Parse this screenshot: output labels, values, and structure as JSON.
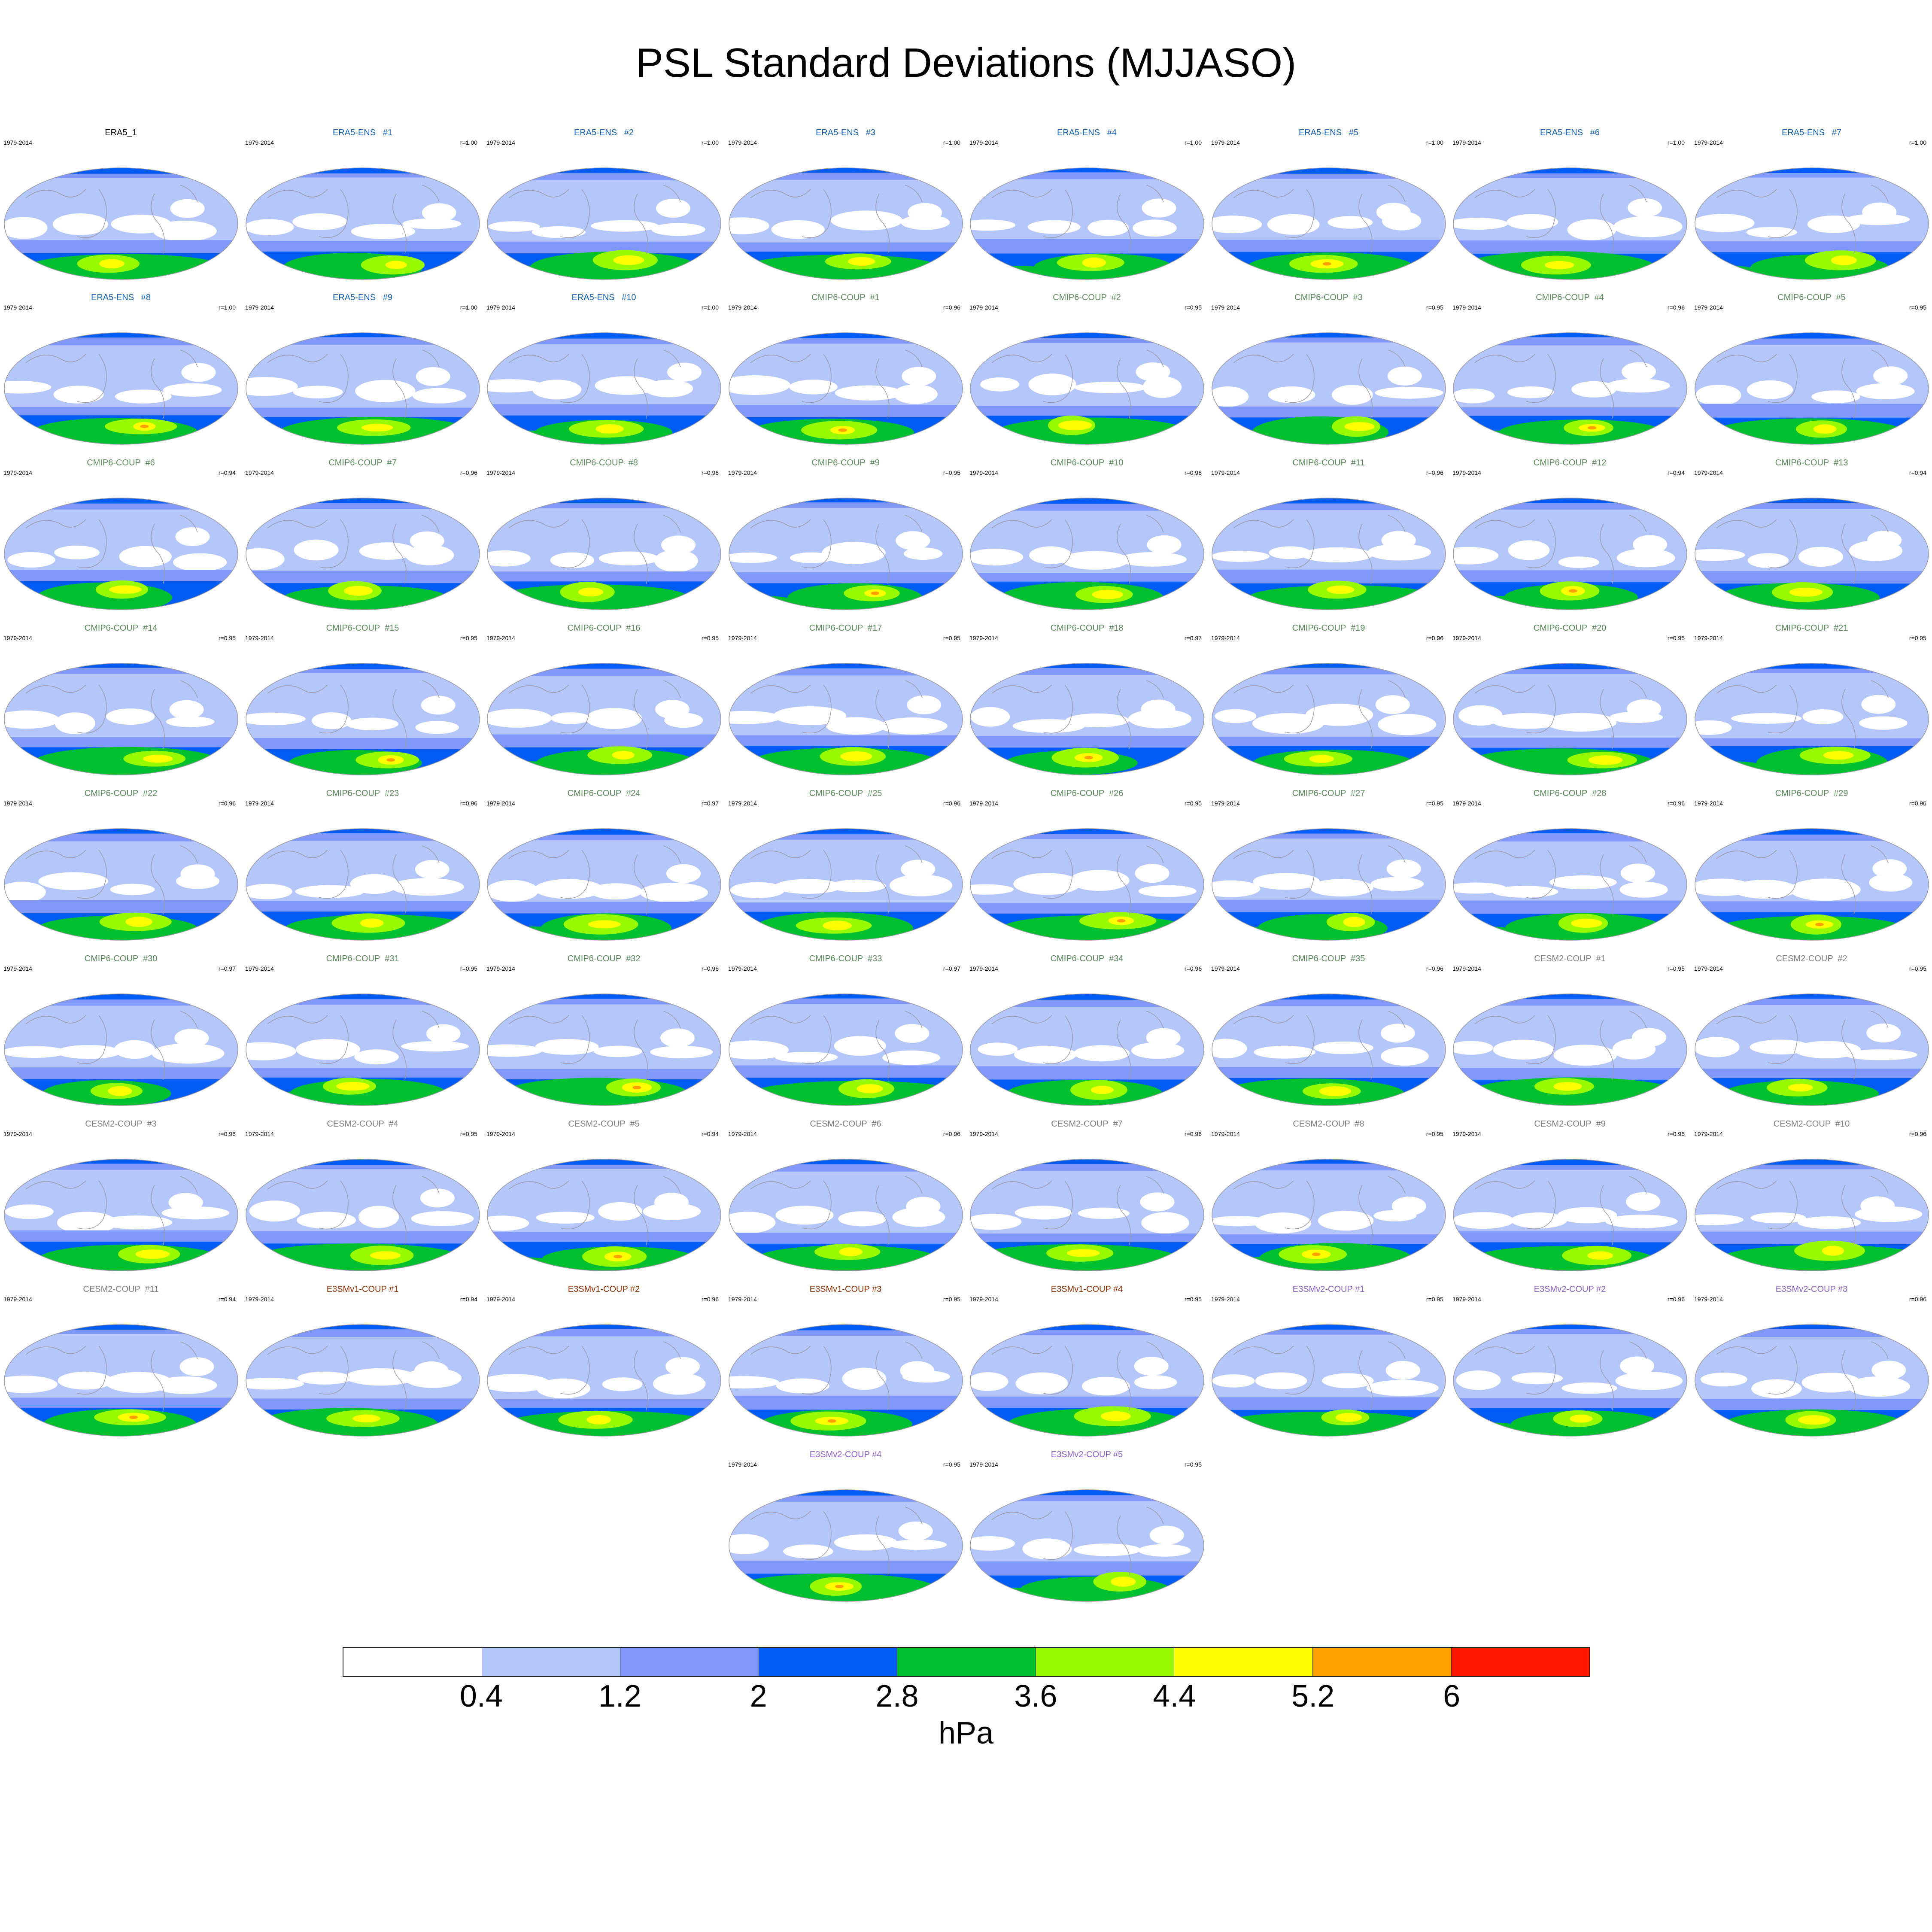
{
  "title": "PSL Standard Deviations (MJJASO)",
  "period": "1979-2014",
  "units": "hPa",
  "colorbar": {
    "colors": [
      "#ffffff",
      "#b4c6fa",
      "#8097fc",
      "#005cf4",
      "#00c030",
      "#98fa00",
      "#ffff00",
      "#ffa000",
      "#fe1600"
    ],
    "labels": [
      "0.4",
      "1.2",
      "2",
      "2.8",
      "3.6",
      "4.4",
      "5.2",
      "6"
    ]
  },
  "group_colors": {
    "ERA5": "#000000",
    "ERA5-ENS": "#1560b0",
    "CMIP6-COUP": "#5a8a5a",
    "CESM2-COUP": "#808080",
    "E3SMv1-COUP": "#8b2e00",
    "E3SMv2-COUP": "#8a60c0"
  },
  "panels": [
    {
      "name": "ERA5_1",
      "group": "ERA5",
      "r": ""
    },
    {
      "name": "ERA5-ENS   #1",
      "group": "ERA5-ENS",
      "r": "r=1.00"
    },
    {
      "name": "ERA5-ENS   #2",
      "group": "ERA5-ENS",
      "r": "r=1.00"
    },
    {
      "name": "ERA5-ENS   #3",
      "group": "ERA5-ENS",
      "r": "r=1.00"
    },
    {
      "name": "ERA5-ENS   #4",
      "group": "ERA5-ENS",
      "r": "r=1.00"
    },
    {
      "name": "ERA5-ENS   #5",
      "group": "ERA5-ENS",
      "r": "r=1.00"
    },
    {
      "name": "ERA5-ENS   #6",
      "group": "ERA5-ENS",
      "r": "r=1.00"
    },
    {
      "name": "ERA5-ENS   #7",
      "group": "ERA5-ENS",
      "r": "r=1.00"
    },
    {
      "name": "ERA5-ENS   #8",
      "group": "ERA5-ENS",
      "r": "r=1.00"
    },
    {
      "name": "ERA5-ENS   #9",
      "group": "ERA5-ENS",
      "r": "r=1.00"
    },
    {
      "name": "ERA5-ENS   #10",
      "group": "ERA5-ENS",
      "r": "r=1.00"
    },
    {
      "name": "CMIP6-COUP  #1",
      "group": "CMIP6-COUP",
      "r": "r=0.96"
    },
    {
      "name": "CMIP6-COUP  #2",
      "group": "CMIP6-COUP",
      "r": "r=0.95"
    },
    {
      "name": "CMIP6-COUP  #3",
      "group": "CMIP6-COUP",
      "r": "r=0.95"
    },
    {
      "name": "CMIP6-COUP  #4",
      "group": "CMIP6-COUP",
      "r": "r=0.96"
    },
    {
      "name": "CMIP6-COUP  #5",
      "group": "CMIP6-COUP",
      "r": "r=0.95"
    },
    {
      "name": "CMIP6-COUP  #6",
      "group": "CMIP6-COUP",
      "r": "r=0.94"
    },
    {
      "name": "CMIP6-COUP  #7",
      "group": "CMIP6-COUP",
      "r": "r=0.96"
    },
    {
      "name": "CMIP6-COUP  #8",
      "group": "CMIP6-COUP",
      "r": "r=0.96"
    },
    {
      "name": "CMIP6-COUP  #9",
      "group": "CMIP6-COUP",
      "r": "r=0.95"
    },
    {
      "name": "CMIP6-COUP  #10",
      "group": "CMIP6-COUP",
      "r": "r=0.96"
    },
    {
      "name": "CMIP6-COUP  #11",
      "group": "CMIP6-COUP",
      "r": "r=0.96"
    },
    {
      "name": "CMIP6-COUP  #12",
      "group": "CMIP6-COUP",
      "r": "r=0.94"
    },
    {
      "name": "CMIP6-COUP  #13",
      "group": "CMIP6-COUP",
      "r": "r=0.94"
    },
    {
      "name": "CMIP6-COUP  #14",
      "group": "CMIP6-COUP",
      "r": "r=0.95"
    },
    {
      "name": "CMIP6-COUP  #15",
      "group": "CMIP6-COUP",
      "r": "r=0.95"
    },
    {
      "name": "CMIP6-COUP  #16",
      "group": "CMIP6-COUP",
      "r": "r=0.95"
    },
    {
      "name": "CMIP6-COUP  #17",
      "group": "CMIP6-COUP",
      "r": "r=0.95"
    },
    {
      "name": "CMIP6-COUP  #18",
      "group": "CMIP6-COUP",
      "r": "r=0.97"
    },
    {
      "name": "CMIP6-COUP  #19",
      "group": "CMIP6-COUP",
      "r": "r=0.96"
    },
    {
      "name": "CMIP6-COUP  #20",
      "group": "CMIP6-COUP",
      "r": "r=0.95"
    },
    {
      "name": "CMIP6-COUP  #21",
      "group": "CMIP6-COUP",
      "r": "r=0.95"
    },
    {
      "name": "CMIP6-COUP  #22",
      "group": "CMIP6-COUP",
      "r": "r=0.96"
    },
    {
      "name": "CMIP6-COUP  #23",
      "group": "CMIP6-COUP",
      "r": "r=0.96"
    },
    {
      "name": "CMIP6-COUP  #24",
      "group": "CMIP6-COUP",
      "r": "r=0.97"
    },
    {
      "name": "CMIP6-COUP  #25",
      "group": "CMIP6-COUP",
      "r": "r=0.96"
    },
    {
      "name": "CMIP6-COUP  #26",
      "group": "CMIP6-COUP",
      "r": "r=0.95"
    },
    {
      "name": "CMIP6-COUP  #27",
      "group": "CMIP6-COUP",
      "r": "r=0.95"
    },
    {
      "name": "CMIP6-COUP  #28",
      "group": "CMIP6-COUP",
      "r": "r=0.96"
    },
    {
      "name": "CMIP6-COUP  #29",
      "group": "CMIP6-COUP",
      "r": "r=0.96"
    },
    {
      "name": "CMIP6-COUP  #30",
      "group": "CMIP6-COUP",
      "r": "r=0.97"
    },
    {
      "name": "CMIP6-COUP  #31",
      "group": "CMIP6-COUP",
      "r": "r=0.95"
    },
    {
      "name": "CMIP6-COUP  #32",
      "group": "CMIP6-COUP",
      "r": "r=0.96"
    },
    {
      "name": "CMIP6-COUP  #33",
      "group": "CMIP6-COUP",
      "r": "r=0.97"
    },
    {
      "name": "CMIP6-COUP  #34",
      "group": "CMIP6-COUP",
      "r": "r=0.96"
    },
    {
      "name": "CMIP6-COUP  #35",
      "group": "CMIP6-COUP",
      "r": "r=0.96"
    },
    {
      "name": "CESM2-COUP  #1",
      "group": "CESM2-COUP",
      "r": "r=0.95"
    },
    {
      "name": "CESM2-COUP  #2",
      "group": "CESM2-COUP",
      "r": "r=0.95"
    },
    {
      "name": "CESM2-COUP  #3",
      "group": "CESM2-COUP",
      "r": "r=0.96"
    },
    {
      "name": "CESM2-COUP  #4",
      "group": "CESM2-COUP",
      "r": "r=0.95"
    },
    {
      "name": "CESM2-COUP  #5",
      "group": "CESM2-COUP",
      "r": "r=0.94"
    },
    {
      "name": "CESM2-COUP  #6",
      "group": "CESM2-COUP",
      "r": "r=0.96"
    },
    {
      "name": "CESM2-COUP  #7",
      "group": "CESM2-COUP",
      "r": "r=0.96"
    },
    {
      "name": "CESM2-COUP  #8",
      "group": "CESM2-COUP",
      "r": "r=0.95"
    },
    {
      "name": "CESM2-COUP  #9",
      "group": "CESM2-COUP",
      "r": "r=0.96"
    },
    {
      "name": "CESM2-COUP  #10",
      "group": "CESM2-COUP",
      "r": "r=0.96"
    },
    {
      "name": "CESM2-COUP  #11",
      "group": "CESM2-COUP",
      "r": "r=0.94"
    },
    {
      "name": "E3SMv1-COUP #1",
      "group": "E3SMv1-COUP",
      "r": "r=0.94"
    },
    {
      "name": "E3SMv1-COUP #2",
      "group": "E3SMv1-COUP",
      "r": "r=0.96"
    },
    {
      "name": "E3SMv1-COUP #3",
      "group": "E3SMv1-COUP",
      "r": "r=0.95"
    },
    {
      "name": "E3SMv1-COUP #4",
      "group": "E3SMv1-COUP",
      "r": "r=0.95"
    },
    {
      "name": "E3SMv2-COUP #1",
      "group": "E3SMv2-COUP",
      "r": "r=0.95"
    },
    {
      "name": "E3SMv2-COUP #2",
      "group": "E3SMv2-COUP",
      "r": "r=0.96"
    },
    {
      "name": "E3SMv2-COUP #3",
      "group": "E3SMv2-COUP",
      "r": "r=0.96"
    },
    {
      "name": "E3SMv2-COUP #4",
      "group": "E3SMv2-COUP",
      "r": "r=0.95"
    },
    {
      "name": "E3SMv2-COUP #5",
      "group": "E3SMv2-COUP",
      "r": "r=0.95"
    }
  ]
}
